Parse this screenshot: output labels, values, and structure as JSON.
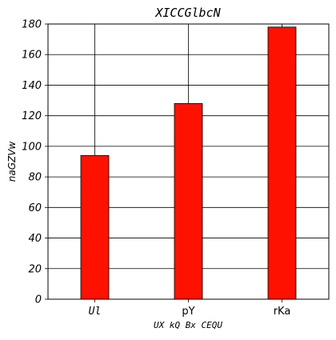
{
  "chart_data": {
    "type": "bar",
    "title": "XICCGlbcN",
    "xlabel": "UX kQ Bx CEQU",
    "ylabel": "naGZVw",
    "categories": [
      "Ul",
      "pY",
      "rKa"
    ],
    "values": [
      94,
      128,
      178
    ],
    "ylim": [
      0,
      180
    ],
    "yticks": [
      0,
      20,
      40,
      60,
      80,
      100,
      120,
      140,
      160,
      180
    ],
    "grid": true,
    "bar_color": "#ff1100",
    "bar_edge_color": "#000000"
  }
}
